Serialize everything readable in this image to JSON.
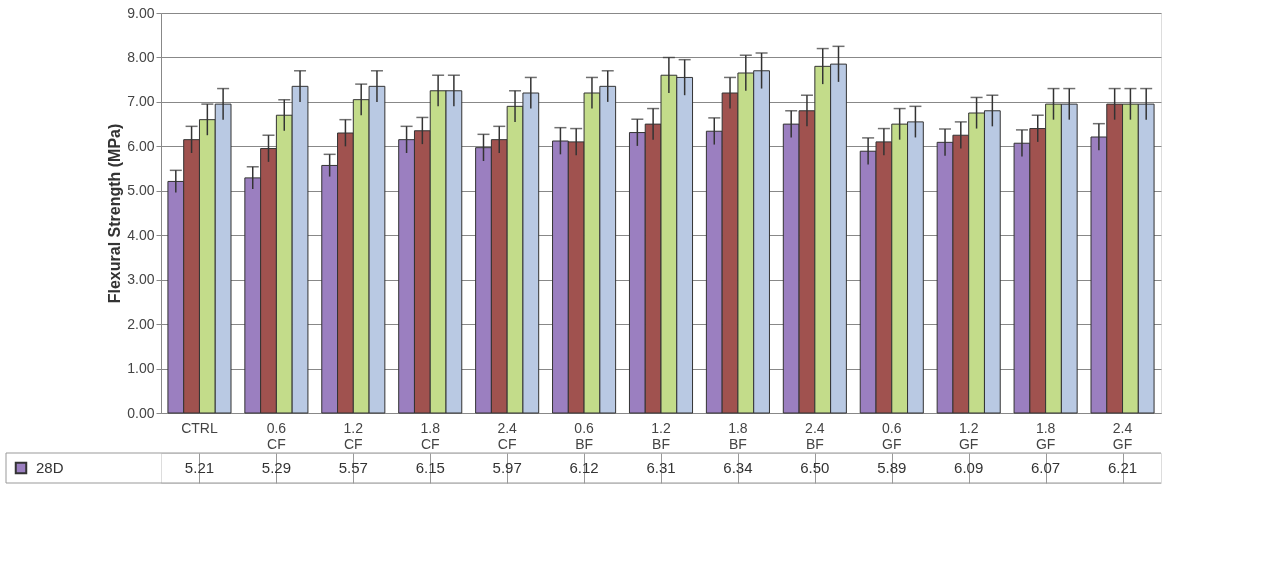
{
  "chart_data": {
    "type": "bar",
    "ylabel": "Flexural Strength (MPa)",
    "categories": [
      "CTRL",
      "0.6 CF",
      "1.2 CF",
      "1.8 CF",
      "2.4 CF",
      "0.6 BF",
      "1.2 BF",
      "1.8 BF",
      "2.4 BF",
      "0.6 GF",
      "1.2 GF",
      "1.8 GF",
      "2.4 GF"
    ],
    "series": [
      {
        "name": "28D",
        "color": "#9b7fc0",
        "values": [
          5.21,
          5.29,
          5.57,
          6.15,
          5.97,
          6.12,
          6.31,
          6.34,
          6.5,
          5.89,
          6.09,
          6.07,
          6.21
        ],
        "value_labels": [
          "5.21",
          "5.29",
          "5.57",
          "6.15",
          "5.97",
          "6.12",
          "6.31",
          "6.34",
          "6.50",
          "5.89",
          "6.09",
          "6.07",
          "6.21"
        ],
        "errors": [
          0.25,
          0.25,
          0.25,
          0.3,
          0.3,
          0.3,
          0.3,
          0.3,
          0.3,
          0.3,
          0.3,
          0.3,
          0.3
        ]
      },
      {
        "color": "#a0524f",
        "values": [
          6.15,
          5.95,
          6.3,
          6.35,
          6.15,
          6.1,
          6.5,
          7.2,
          6.8,
          6.1,
          6.25,
          6.4,
          6.95
        ],
        "errors": [
          0.3,
          0.3,
          0.3,
          0.3,
          0.3,
          0.3,
          0.35,
          0.35,
          0.35,
          0.3,
          0.3,
          0.3,
          0.35
        ]
      },
      {
        "color": "#c3dc8a",
        "values": [
          6.6,
          6.7,
          7.05,
          7.25,
          6.9,
          7.2,
          7.6,
          7.65,
          7.8,
          6.5,
          6.75,
          6.95,
          6.95
        ],
        "errors": [
          0.35,
          0.35,
          0.35,
          0.35,
          0.35,
          0.35,
          0.4,
          0.4,
          0.4,
          0.35,
          0.35,
          0.35,
          0.35
        ]
      },
      {
        "color": "#b9c9e3",
        "values": [
          6.95,
          7.35,
          7.35,
          7.25,
          7.2,
          7.35,
          7.55,
          7.7,
          7.85,
          6.55,
          6.8,
          6.95,
          6.95
        ],
        "errors": [
          0.35,
          0.35,
          0.35,
          0.35,
          0.35,
          0.35,
          0.4,
          0.4,
          0.4,
          0.35,
          0.35,
          0.35,
          0.35
        ]
      }
    ],
    "ylim": [
      0,
      9
    ],
    "yticks": [
      {
        "value": 0,
        "label": "0.00"
      },
      {
        "value": 1,
        "label": "1.00"
      },
      {
        "value": 2,
        "label": "2.00"
      },
      {
        "value": 3,
        "label": "3.00"
      },
      {
        "value": 4,
        "label": "4.00"
      },
      {
        "value": 5,
        "label": "5.00"
      },
      {
        "value": 6,
        "label": "6.00"
      },
      {
        "value": 7,
        "label": "7.00"
      },
      {
        "value": 8,
        "label": "8.00"
      },
      {
        "value": 9,
        "label": "9.00"
      }
    ],
    "grid": "y"
  }
}
